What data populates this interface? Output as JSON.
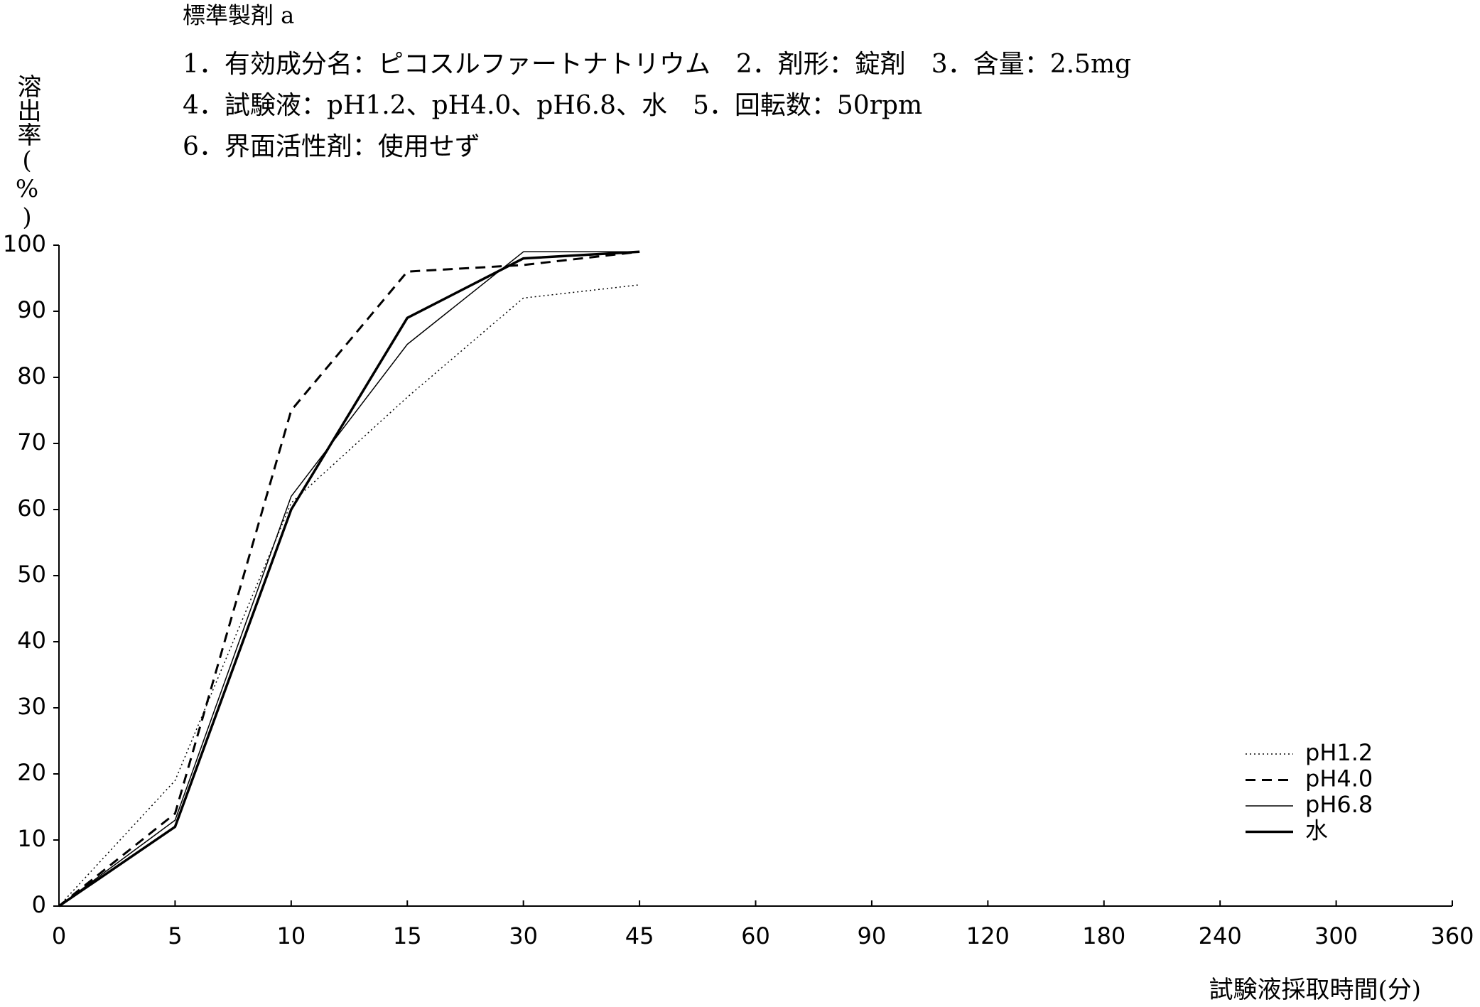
{
  "chart_data": {
    "type": "line",
    "title": "標準製剤 a",
    "subtitle": [
      "1．有効成分名：ピコスルファートナトリウム　2．剤形：錠剤　3．含量：2.5mg",
      "4．試験液：pH1.2、pH4.0、pH6.8、水　5．回転数：50rpm",
      "6．界面活性剤：使用せず"
    ],
    "y_label": "溶出率(%)",
    "x_label": "試験液採取時間(分)",
    "categories": [
      "0",
      "5",
      "10",
      "15",
      "30",
      "45",
      "60",
      "90",
      "120",
      "180",
      "240",
      "300",
      "360"
    ],
    "series": [
      {
        "name": "pH1.2",
        "color": "#000000",
        "values": [
          0,
          19,
          61,
          77,
          92,
          94,
          null,
          null,
          null,
          null,
          null,
          null,
          null
        ]
      },
      {
        "name": "pH4.0",
        "color": "#000000",
        "values": [
          0,
          14,
          75,
          96,
          97,
          99,
          null,
          null,
          null,
          null,
          null,
          null,
          null
        ]
      },
      {
        "name": "pH6.8",
        "color": "#000000",
        "values": [
          0,
          13,
          62,
          85,
          99,
          99,
          null,
          null,
          null,
          null,
          null,
          null,
          null
        ]
      },
      {
        "name": "水",
        "color": "#000000",
        "values": [
          0,
          12,
          60,
          89,
          98,
          99,
          null,
          null,
          null,
          null,
          null,
          null,
          null
        ]
      }
    ],
    "ylim": [
      0,
      100
    ],
    "yticks": [
      0,
      10,
      20,
      30,
      40,
      50,
      60,
      70,
      80,
      90,
      100
    ],
    "legend": "lower right"
  }
}
